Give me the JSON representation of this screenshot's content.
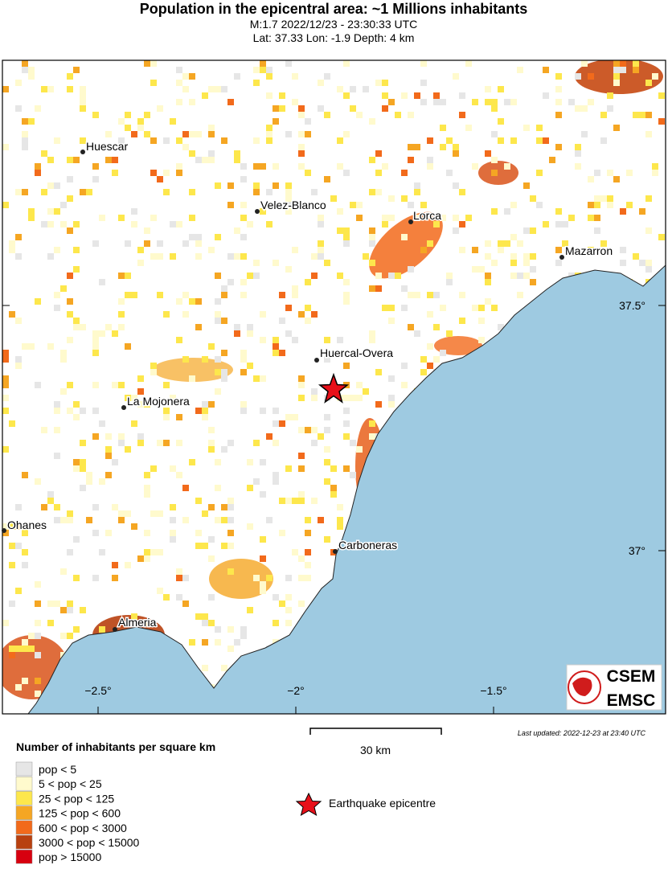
{
  "header": {
    "title": "Population in the epicentral area: ~1 Millions inhabitants",
    "line1": "M:1.7 2022/12/23 - 23:30:33 UTC",
    "line2": "Lat: 37.33 Lon: -1.9 Depth: 4 km"
  },
  "map": {
    "cities": [
      "Huescar",
      "Velez-Blanco",
      "Lorca",
      "Mazarron",
      "Huercal-Overa",
      "La Mojonera",
      "Ohanes",
      "Carboneras",
      "Almeria"
    ],
    "lon_labels": [
      "−2.5°",
      "−2°",
      "−1.5°"
    ],
    "lat_labels": [
      "37.5°",
      "37°"
    ],
    "scale": "30 km",
    "updated": "Last updated: 2022-12-23 at 23:40 UTC",
    "logo": [
      "CSEM",
      "EMSC"
    ]
  },
  "legend": {
    "title": "Number of inhabitants per square km",
    "entries": [
      "pop < 5",
      "5 < pop < 25",
      "25 < pop < 125",
      "125 < pop < 600",
      "600 < pop < 3000",
      "3000 < pop < 15000",
      "pop > 15000"
    ],
    "epicentre": "Earthquake epicentre"
  }
}
